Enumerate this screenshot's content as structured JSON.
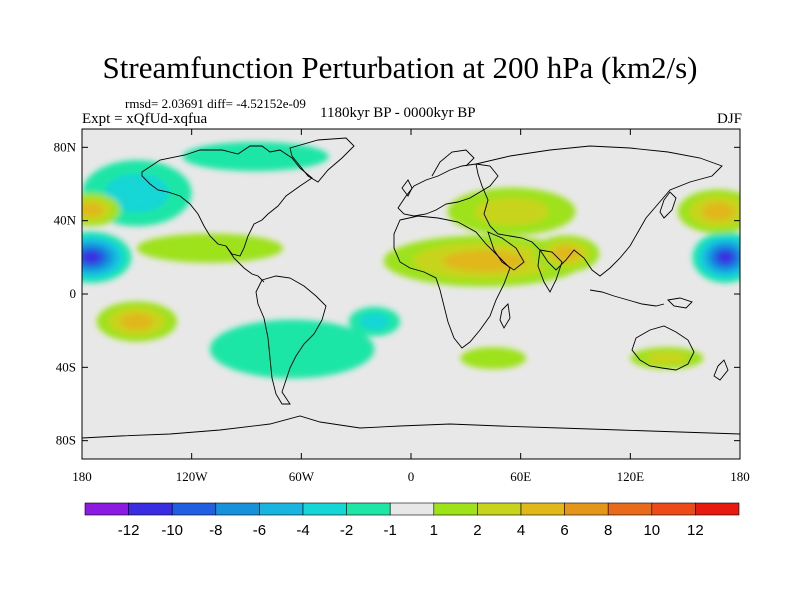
{
  "chart_data": {
    "type": "heatmap",
    "title": "Streamfunction Perturbation at 200 hPa (km2/s)",
    "stats_line": "rmsd= 2.03691  diff= -4.52152e-09",
    "expt_label": "Expt = xQfUd-xqfua",
    "period_label": "1180kyr BP - 0000kyr BP",
    "season_label": "DJF",
    "x_ticks": [
      {
        "value": -180,
        "label": "180"
      },
      {
        "value": -120,
        "label": "120W"
      },
      {
        "value": -60,
        "label": "60W"
      },
      {
        "value": 0,
        "label": "0"
      },
      {
        "value": 60,
        "label": "60E"
      },
      {
        "value": 120,
        "label": "120E"
      },
      {
        "value": 180,
        "label": "180"
      }
    ],
    "y_ticks": [
      {
        "value": 80,
        "label": "80N"
      },
      {
        "value": 40,
        "label": "40N"
      },
      {
        "value": 0,
        "label": "0"
      },
      {
        "value": -40,
        "label": "40S"
      },
      {
        "value": -80,
        "label": "80S"
      }
    ],
    "xlim": [
      -180,
      180
    ],
    "ylim": [
      -90,
      90
    ],
    "colorbar": {
      "colors": [
        "#8b1be0",
        "#3a2ce0",
        "#1f5fe0",
        "#1691dc",
        "#19b4e0",
        "#15d6d6",
        "#1ee6a6",
        "#e8e8e8",
        "#9ee21a",
        "#c8d41c",
        "#e0b81a",
        "#e4961a",
        "#e86a1a",
        "#ec4a18",
        "#e8190f"
      ],
      "boundaries": [
        {
          "label": "-12"
        },
        {
          "label": "-10"
        },
        {
          "label": "-8"
        },
        {
          "label": "-6"
        },
        {
          "label": "-4"
        },
        {
          "label": "-2"
        },
        {
          "label": "-1"
        },
        {
          "label": "1"
        },
        {
          "label": "2"
        },
        {
          "label": "4"
        },
        {
          "label": "6"
        },
        {
          "label": "8"
        },
        {
          "label": "10"
        },
        {
          "label": "12"
        }
      ]
    },
    "features": [
      {
        "name": "subtropical-high-africa-asia",
        "lon": 40,
        "lat": 18,
        "rlon": 55,
        "rlat": 14,
        "value": 5.8
      },
      {
        "name": "ridge-south-asia",
        "lon": 85,
        "lat": 22,
        "rlon": 18,
        "rlat": 10,
        "value": 4.2
      },
      {
        "name": "central-asia-positive",
        "lon": 55,
        "lat": 45,
        "rlon": 35,
        "rlat": 13,
        "value": 2.1
      },
      {
        "name": "north-atlantic-negative",
        "lon": -150,
        "lat": 55,
        "rlon": 30,
        "rlat": 18,
        "value": -3.6
      },
      {
        "name": "north-pacific-low",
        "lon": -175,
        "lat": 20,
        "rlon": 22,
        "rlat": 14,
        "value": -10.8
      },
      {
        "name": "north-pacific-low-east",
        "lon": 172,
        "lat": 20,
        "rlon": 18,
        "rlat": 14,
        "value": -10.2
      },
      {
        "name": "northwest-pacific-positive",
        "lon": 168,
        "lat": 45,
        "rlon": 22,
        "rlat": 12,
        "value": 5.2
      },
      {
        "name": "northeast-pacific-positive",
        "lon": -175,
        "lat": 46,
        "rlon": 16,
        "rlat": 9,
        "value": 4.8
      },
      {
        "name": "south-pacific-positive",
        "lon": -150,
        "lat": -15,
        "rlon": 22,
        "rlat": 11,
        "value": 5.6
      },
      {
        "name": "south-america-negative",
        "lon": -65,
        "lat": -30,
        "rlon": 45,
        "rlat": 16,
        "value": -1.8
      },
      {
        "name": "south-atlantic-negative",
        "lon": -20,
        "lat": -15,
        "rlon": 14,
        "rlat": 8,
        "value": -2.4
      },
      {
        "name": "arctic-negative",
        "lon": -85,
        "lat": 75,
        "rlon": 40,
        "rlat": 8,
        "value": -1.8
      },
      {
        "name": "south-indian-positive",
        "lon": 45,
        "lat": -35,
        "rlon": 18,
        "rlat": 6,
        "value": 1.5
      },
      {
        "name": "australia-positive",
        "lon": 140,
        "lat": -35,
        "rlon": 20,
        "rlat": 6,
        "value": 2.0
      },
      {
        "name": "east-pacific-tropical-positive",
        "lon": -110,
        "lat": 25,
        "rlon": 40,
        "rlat": 8,
        "value": 1.6
      }
    ]
  }
}
